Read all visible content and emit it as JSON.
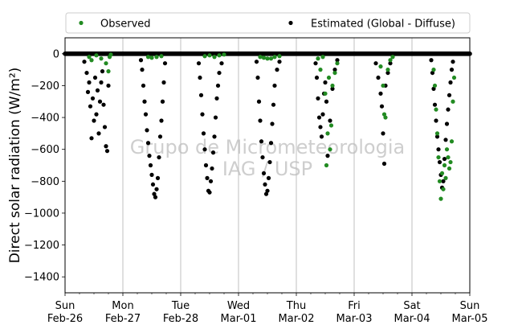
{
  "chart_data": {
    "type": "scatter",
    "ylabel": "Direct solar radiation (W/m²)",
    "xlabel": "",
    "ylim": [
      -1500,
      100
    ],
    "yticks": [
      0,
      -200,
      -400,
      -600,
      -800,
      -1000,
      -1200,
      -1400
    ],
    "xlim": [
      "2023-02-26",
      "2023-03-05"
    ],
    "xticks": [
      {
        "date": "2023-02-26",
        "day": "Sun",
        "date_label": "Feb-26"
      },
      {
        "date": "2023-02-27",
        "day": "Mon",
        "date_label": "Feb-27"
      },
      {
        "date": "2023-02-28",
        "day": "Tue",
        "date_label": "Feb-28"
      },
      {
        "date": "2023-03-01",
        "day": "Wed",
        "date_label": "Mar-01"
      },
      {
        "date": "2023-03-02",
        "day": "Thu",
        "date_label": "Mar-02"
      },
      {
        "date": "2023-03-03",
        "day": "Fri",
        "date_label": "Mar-03"
      },
      {
        "date": "2023-03-04",
        "day": "Sat",
        "date_label": "Mar-04"
      },
      {
        "date": "2023-03-05",
        "day": "Sun",
        "date_label": "Mar-05"
      }
    ],
    "grid": {
      "x": true,
      "y": false
    },
    "legend": {
      "placement": "above-plot",
      "ncol": 2
    },
    "watermark": [
      "Grupo de Micrometeorologia",
      "IAG / USP"
    ],
    "series": [
      {
        "name": "Observed",
        "color": "#228b22",
        "marker": "dot",
        "points": [
          {
            "x": "2023-02-26 10:00",
            "y": -20
          },
          {
            "x": "2023-02-26 11:00",
            "y": -40
          },
          {
            "x": "2023-02-26 13:00",
            "y": -10
          },
          {
            "x": "2023-02-26 15:00",
            "y": -30
          },
          {
            "x": "2023-02-26 17:00",
            "y": -60
          },
          {
            "x": "2023-02-26 18:00",
            "y": -110
          },
          {
            "x": "2023-02-26 18:30",
            "y": -20
          },
          {
            "x": "2023-02-26 19:00",
            "y": -5
          },
          {
            "x": "2023-02-27 10:30",
            "y": -20
          },
          {
            "x": "2023-02-27 12:00",
            "y": -25
          },
          {
            "x": "2023-02-27 14:00",
            "y": -20
          },
          {
            "x": "2023-02-27 16:00",
            "y": -15
          },
          {
            "x": "2023-02-28 10:00",
            "y": -15
          },
          {
            "x": "2023-02-28 12:00",
            "y": -10
          },
          {
            "x": "2023-02-28 14:00",
            "y": -20
          },
          {
            "x": "2023-02-28 16:00",
            "y": -10
          },
          {
            "x": "2023-02-28 18:00",
            "y": -5
          },
          {
            "x": "2023-03-01 09:00",
            "y": -20
          },
          {
            "x": "2023-03-01 10:30",
            "y": -25
          },
          {
            "x": "2023-03-01 12:00",
            "y": -30
          },
          {
            "x": "2023-03-01 13:30",
            "y": -30
          },
          {
            "x": "2023-03-01 15:00",
            "y": -20
          },
          {
            "x": "2023-03-01 17:00",
            "y": -15
          },
          {
            "x": "2023-03-02 09:00",
            "y": -30
          },
          {
            "x": "2023-03-02 10:00",
            "y": -100
          },
          {
            "x": "2023-03-02 11:00",
            "y": -20
          },
          {
            "x": "2023-03-02 12:00",
            "y": -250
          },
          {
            "x": "2023-03-02 12:30",
            "y": -700
          },
          {
            "x": "2023-03-02 13:00",
            "y": -500
          },
          {
            "x": "2023-03-02 13:30",
            "y": -150
          },
          {
            "x": "2023-03-02 14:00",
            "y": -600
          },
          {
            "x": "2023-03-02 14:30",
            "y": -450
          },
          {
            "x": "2023-03-02 15:00",
            "y": -200
          },
          {
            "x": "2023-03-02 16:00",
            "y": -120
          },
          {
            "x": "2023-03-02 17:00",
            "y": -60
          },
          {
            "x": "2023-03-03 11:00",
            "y": -80
          },
          {
            "x": "2023-03-03 12:00",
            "y": -200
          },
          {
            "x": "2023-03-03 12:30",
            "y": -380
          },
          {
            "x": "2023-03-03 13:00",
            "y": -400
          },
          {
            "x": "2023-03-03 14:00",
            "y": -100
          },
          {
            "x": "2023-03-03 15:00",
            "y": -40
          },
          {
            "x": "2023-03-03 16:00",
            "y": -20
          },
          {
            "x": "2023-03-04 09:00",
            "y": -100
          },
          {
            "x": "2023-03-04 09:30",
            "y": -200
          },
          {
            "x": "2023-03-04 10:00",
            "y": -350
          },
          {
            "x": "2023-03-04 10:30",
            "y": -500
          },
          {
            "x": "2023-03-04 11:00",
            "y": -650
          },
          {
            "x": "2023-03-04 11:30",
            "y": -800
          },
          {
            "x": "2023-03-04 12:00",
            "y": -910
          },
          {
            "x": "2023-03-04 12:30",
            "y": -750
          },
          {
            "x": "2023-03-04 13:00",
            "y": -850
          },
          {
            "x": "2023-03-04 13:30",
            "y": -700
          },
          {
            "x": "2023-03-04 14:00",
            "y": -780
          },
          {
            "x": "2023-03-04 14:30",
            "y": -600
          },
          {
            "x": "2023-03-04 15:00",
            "y": -650
          },
          {
            "x": "2023-03-04 15:30",
            "y": -720
          },
          {
            "x": "2023-03-04 16:00",
            "y": -680
          },
          {
            "x": "2023-03-04 16:30",
            "y": -550
          },
          {
            "x": "2023-03-04 17:00",
            "y": -300
          },
          {
            "x": "2023-03-04 17:30",
            "y": -150
          }
        ]
      },
      {
        "name": "Estimated (Global - Diffuse)",
        "color": "#000000",
        "marker": "dot",
        "points": [
          {
            "x": "2023-02-26 08:00",
            "y": -50
          },
          {
            "x": "2023-02-26 09:00",
            "y": -120
          },
          {
            "x": "2023-02-26 09:30",
            "y": -240
          },
          {
            "x": "2023-02-26 10:00",
            "y": -180
          },
          {
            "x": "2023-02-26 10:30",
            "y": -330
          },
          {
            "x": "2023-02-26 11:00",
            "y": -530
          },
          {
            "x": "2023-02-26 11:30",
            "y": -280
          },
          {
            "x": "2023-02-26 12:00",
            "y": -420
          },
          {
            "x": "2023-02-26 12:30",
            "y": -150
          },
          {
            "x": "2023-02-26 13:00",
            "y": -380
          },
          {
            "x": "2023-02-26 13:30",
            "y": -230
          },
          {
            "x": "2023-02-26 14:00",
            "y": -500
          },
          {
            "x": "2023-02-26 14:30",
            "y": -300
          },
          {
            "x": "2023-02-26 15:00",
            "y": -180
          },
          {
            "x": "2023-02-26 15:30",
            "y": -110
          },
          {
            "x": "2023-02-26 16:00",
            "y": -320
          },
          {
            "x": "2023-02-26 16:30",
            "y": -460
          },
          {
            "x": "2023-02-26 17:00",
            "y": -580
          },
          {
            "x": "2023-02-26 17:30",
            "y": -610
          },
          {
            "x": "2023-02-26 18:00",
            "y": -200
          },
          {
            "x": "2023-02-27 07:30",
            "y": -40
          },
          {
            "x": "2023-02-27 08:00",
            "y": -100
          },
          {
            "x": "2023-02-27 08:30",
            "y": -200
          },
          {
            "x": "2023-02-27 09:00",
            "y": -300
          },
          {
            "x": "2023-02-27 09:30",
            "y": -380
          },
          {
            "x": "2023-02-27 10:00",
            "y": -480
          },
          {
            "x": "2023-02-27 10:30",
            "y": -560
          },
          {
            "x": "2023-02-27 11:00",
            "y": -640
          },
          {
            "x": "2023-02-27 11:30",
            "y": -700
          },
          {
            "x": "2023-02-27 12:00",
            "y": -760
          },
          {
            "x": "2023-02-27 12:30",
            "y": -820
          },
          {
            "x": "2023-02-27 13:00",
            "y": -880
          },
          {
            "x": "2023-02-27 13:30",
            "y": -900
          },
          {
            "x": "2023-02-27 14:00",
            "y": -850
          },
          {
            "x": "2023-02-27 14:30",
            "y": -780
          },
          {
            "x": "2023-02-27 15:00",
            "y": -650
          },
          {
            "x": "2023-02-27 15:30",
            "y": -520
          },
          {
            "x": "2023-02-27 16:00",
            "y": -420
          },
          {
            "x": "2023-02-27 16:30",
            "y": -300
          },
          {
            "x": "2023-02-27 17:00",
            "y": -180
          },
          {
            "x": "2023-02-27 17:30",
            "y": -60
          },
          {
            "x": "2023-02-28 07:30",
            "y": -60
          },
          {
            "x": "2023-02-28 08:00",
            "y": -150
          },
          {
            "x": "2023-02-28 08:30",
            "y": -260
          },
          {
            "x": "2023-02-28 09:00",
            "y": -380
          },
          {
            "x": "2023-02-28 09:30",
            "y": -500
          },
          {
            "x": "2023-02-28 10:00",
            "y": -600
          },
          {
            "x": "2023-02-28 10:30",
            "y": -700
          },
          {
            "x": "2023-02-28 11:00",
            "y": -780
          },
          {
            "x": "2023-02-28 11:30",
            "y": -860
          },
          {
            "x": "2023-02-28 12:00",
            "y": -870
          },
          {
            "x": "2023-02-28 12:30",
            "y": -800
          },
          {
            "x": "2023-02-28 13:00",
            "y": -720
          },
          {
            "x": "2023-02-28 13:30",
            "y": -620
          },
          {
            "x": "2023-02-28 14:00",
            "y": -520
          },
          {
            "x": "2023-02-28 14:30",
            "y": -400
          },
          {
            "x": "2023-02-28 15:00",
            "y": -280
          },
          {
            "x": "2023-02-28 15:30",
            "y": -200
          },
          {
            "x": "2023-02-28 16:00",
            "y": -120
          },
          {
            "x": "2023-02-28 17:00",
            "y": -60
          },
          {
            "x": "2023-03-01 07:30",
            "y": -50
          },
          {
            "x": "2023-03-01 08:00",
            "y": -150
          },
          {
            "x": "2023-03-01 08:30",
            "y": -300
          },
          {
            "x": "2023-03-01 09:00",
            "y": -420
          },
          {
            "x": "2023-03-01 09:30",
            "y": -550
          },
          {
            "x": "2023-03-01 10:00",
            "y": -650
          },
          {
            "x": "2023-03-01 10:30",
            "y": -750
          },
          {
            "x": "2023-03-01 11:00",
            "y": -820
          },
          {
            "x": "2023-03-01 11:30",
            "y": -880
          },
          {
            "x": "2023-03-01 12:00",
            "y": -860
          },
          {
            "x": "2023-03-01 12:30",
            "y": -780
          },
          {
            "x": "2023-03-01 13:00",
            "y": -680
          },
          {
            "x": "2023-03-01 13:30",
            "y": -560
          },
          {
            "x": "2023-03-01 14:00",
            "y": -440
          },
          {
            "x": "2023-03-01 14:30",
            "y": -320
          },
          {
            "x": "2023-03-01 15:00",
            "y": -200
          },
          {
            "x": "2023-03-01 16:00",
            "y": -100
          },
          {
            "x": "2023-03-01 17:00",
            "y": -50
          },
          {
            "x": "2023-03-02 08:00",
            "y": -60
          },
          {
            "x": "2023-03-02 08:30",
            "y": -150
          },
          {
            "x": "2023-03-02 09:00",
            "y": -280
          },
          {
            "x": "2023-03-02 09:30",
            "y": -400
          },
          {
            "x": "2023-03-02 10:00",
            "y": -460
          },
          {
            "x": "2023-03-02 10:30",
            "y": -520
          },
          {
            "x": "2023-03-02 11:00",
            "y": -380
          },
          {
            "x": "2023-03-02 11:30",
            "y": -250
          },
          {
            "x": "2023-03-02 12:00",
            "y": -180
          },
          {
            "x": "2023-03-02 12:30",
            "y": -300
          },
          {
            "x": "2023-03-02 13:00",
            "y": -640
          },
          {
            "x": "2023-03-02 14:00",
            "y": -420
          },
          {
            "x": "2023-03-02 15:00",
            "y": -220
          },
          {
            "x": "2023-03-02 16:00",
            "y": -100
          },
          {
            "x": "2023-03-02 17:00",
            "y": -40
          },
          {
            "x": "2023-03-03 09:00",
            "y": -60
          },
          {
            "x": "2023-03-03 10:00",
            "y": -150
          },
          {
            "x": "2023-03-03 11:00",
            "y": -250
          },
          {
            "x": "2023-03-03 11:30",
            "y": -330
          },
          {
            "x": "2023-03-03 12:00",
            "y": -500
          },
          {
            "x": "2023-03-03 12:30",
            "y": -690
          },
          {
            "x": "2023-03-03 13:00",
            "y": -200
          },
          {
            "x": "2023-03-03 14:00",
            "y": -120
          },
          {
            "x": "2023-03-03 15:00",
            "y": -60
          },
          {
            "x": "2023-03-04 08:00",
            "y": -40
          },
          {
            "x": "2023-03-04 08:30",
            "y": -120
          },
          {
            "x": "2023-03-04 09:00",
            "y": -220
          },
          {
            "x": "2023-03-04 09:30",
            "y": -320
          },
          {
            "x": "2023-03-04 10:00",
            "y": -420
          },
          {
            "x": "2023-03-04 10:30",
            "y": -520
          },
          {
            "x": "2023-03-04 11:00",
            "y": -600
          },
          {
            "x": "2023-03-04 11:30",
            "y": -680
          },
          {
            "x": "2023-03-04 12:00",
            "y": -760
          },
          {
            "x": "2023-03-04 12:30",
            "y": -840
          },
          {
            "x": "2023-03-04 13:00",
            "y": -800
          },
          {
            "x": "2023-03-04 13:30",
            "y": -660
          },
          {
            "x": "2023-03-04 14:00",
            "y": -540
          },
          {
            "x": "2023-03-04 14:30",
            "y": -440
          },
          {
            "x": "2023-03-04 15:00",
            "y": -350
          },
          {
            "x": "2023-03-04 15:30",
            "y": -260
          },
          {
            "x": "2023-03-04 16:00",
            "y": -180
          },
          {
            "x": "2023-03-04 16:30",
            "y": -100
          },
          {
            "x": "2023-03-04 17:00",
            "y": -50
          }
        ]
      }
    ]
  }
}
